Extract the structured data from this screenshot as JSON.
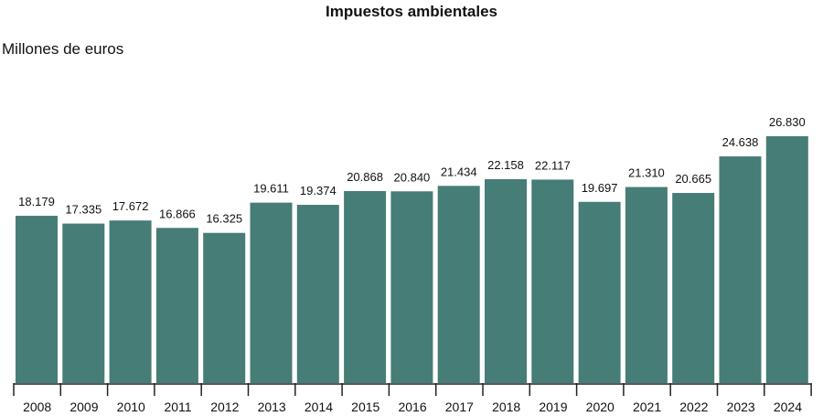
{
  "chart_data": {
    "type": "bar",
    "title": "Impuestos ambientales",
    "ylabel": "Millones de euros",
    "xlabel": "",
    "categories": [
      "2008",
      "2009",
      "2010",
      "2011",
      "2012",
      "2013",
      "2014",
      "2015",
      "2016",
      "2017",
      "2018",
      "2019",
      "2020",
      "2021",
      "2022",
      "2023",
      "2024"
    ],
    "values": [
      18179,
      17335,
      17672,
      16866,
      16325,
      19611,
      19374,
      20868,
      20840,
      21434,
      22158,
      22117,
      19697,
      21310,
      20665,
      24638,
      26830
    ],
    "value_labels": [
      "18.179",
      "17.335",
      "17.672",
      "16.866",
      "16.325",
      "19.611",
      "19.374",
      "20.868",
      "20.840",
      "21.434",
      "22.158",
      "22.117",
      "19.697",
      "21.310",
      "20.665",
      "24.638",
      "26.830"
    ],
    "ylim": [
      0,
      30000
    ],
    "grid": false,
    "bar_color": "#467d76"
  }
}
